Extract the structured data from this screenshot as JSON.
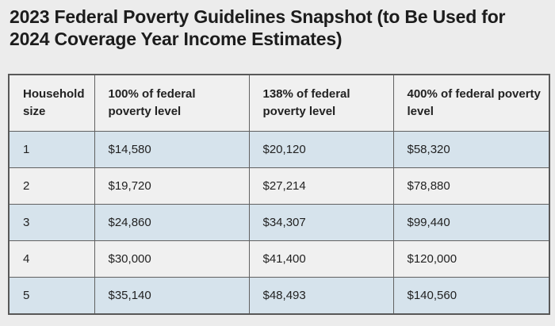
{
  "title": "2023 Federal Poverty Guidelines Snapshot (to Be Used for 2024 Coverage Year Income Estimates)",
  "table": {
    "headers": [
      "Household size",
      "100% of federal poverty level",
      "138% of federal poverty level",
      "400% of federal poverty level"
    ],
    "rows": [
      [
        "1",
        "$14,580",
        "$20,120",
        "$58,320"
      ],
      [
        "2",
        "$19,720",
        "$27,214",
        "$78,880"
      ],
      [
        "3",
        "$24,860",
        "$34,307",
        "$99,440"
      ],
      [
        "4",
        "$30,000",
        "$41,400",
        "$120,000"
      ],
      [
        "5",
        "$35,140",
        "$48,493",
        "$140,560"
      ]
    ],
    "colors": {
      "row_highlight_blue": "#d6e3ec",
      "row_gray": "#f0f0f0",
      "border": "#5c5c5c",
      "page_background": "#ececec",
      "text": "#1e1e1e"
    }
  }
}
